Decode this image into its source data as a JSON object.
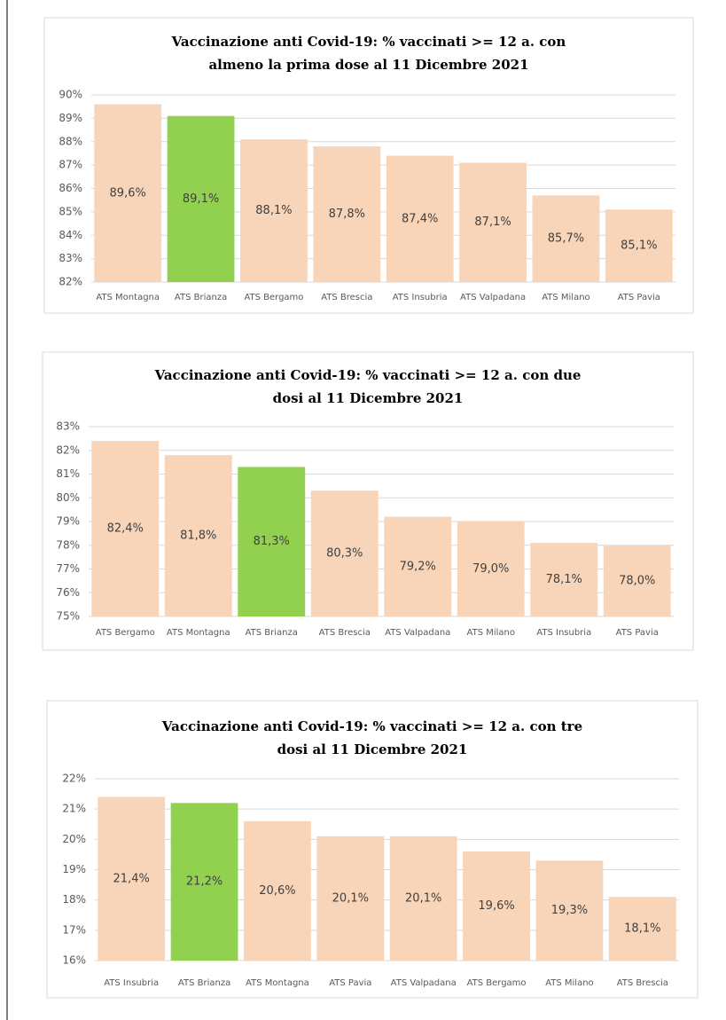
{
  "chart_data": [
    {
      "type": "bar",
      "title": [
        "Vaccinazione anti Covid-19: % vaccinati >= 12 a. con",
        "almeno la prima dose al 11 Dicembre 2021"
      ],
      "categories": [
        "ATS Montagna",
        "ATS Brianza",
        "ATS Bergamo",
        "ATS Brescia",
        "ATS Insubria",
        "ATS Valpadana",
        "ATS Milano",
        "ATS Pavia"
      ],
      "values": [
        89.6,
        89.1,
        88.1,
        87.8,
        87.4,
        87.1,
        85.7,
        85.1
      ],
      "value_labels": [
        "89,6%",
        "89,1%",
        "88,1%",
        "87,8%",
        "87,4%",
        "87,1%",
        "85,7%",
        "85,1%"
      ],
      "colors": [
        "#f8d5b8",
        "#92d050",
        "#f8d5b8",
        "#f8d5b8",
        "#f8d5b8",
        "#f8d5b8",
        "#f8d5b8",
        "#f8d5b8"
      ],
      "ylim": [
        82,
        90
      ],
      "yticks": [
        {
          "value": 82,
          "label": "82%"
        },
        {
          "value": 83,
          "label": "83%"
        },
        {
          "value": 84,
          "label": "84%"
        },
        {
          "value": 85,
          "label": "85%"
        },
        {
          "value": 86,
          "label": "86%"
        },
        {
          "value": 87,
          "label": "87%"
        },
        {
          "value": 88,
          "label": "88%"
        },
        {
          "value": 89,
          "label": "89%"
        },
        {
          "value": 90,
          "label": "90%"
        }
      ],
      "grid": true
    },
    {
      "type": "bar",
      "title": [
        "Vaccinazione anti Covid-19: % vaccinati >= 12 a. con due",
        "dosi al 11 Dicembre 2021"
      ],
      "categories": [
        "ATS Bergamo",
        "ATS Montagna",
        "ATS Brianza",
        "ATS Brescia",
        "ATS Valpadana",
        "ATS Milano",
        "ATS Insubria",
        "ATS Pavia"
      ],
      "values": [
        82.4,
        81.8,
        81.3,
        80.3,
        79.2,
        79.0,
        78.1,
        78.0
      ],
      "value_labels": [
        "82,4%",
        "81,8%",
        "81,3%",
        "80,3%",
        "79,2%",
        "79,0%",
        "78,1%",
        "78,0%"
      ],
      "colors": [
        "#f8d5b8",
        "#f8d5b8",
        "#92d050",
        "#f8d5b8",
        "#f8d5b8",
        "#f8d5b8",
        "#f8d5b8",
        "#f8d5b8"
      ],
      "ylim": [
        75,
        83
      ],
      "yticks": [
        {
          "value": 75,
          "label": "75%"
        },
        {
          "value": 76,
          "label": "76%"
        },
        {
          "value": 77,
          "label": "77%"
        },
        {
          "value": 78,
          "label": "78%"
        },
        {
          "value": 79,
          "label": "79%"
        },
        {
          "value": 80,
          "label": "80%"
        },
        {
          "value": 81,
          "label": "81%"
        },
        {
          "value": 82,
          "label": "82%"
        },
        {
          "value": 83,
          "label": "83%"
        }
      ],
      "grid": true
    },
    {
      "type": "bar",
      "title": [
        "Vaccinazione anti Covid-19: % vaccinati >= 12 a. con tre",
        "dosi al 11 Dicembre 2021"
      ],
      "categories": [
        "ATS Insubria",
        "ATS Brianza",
        "ATS Montagna",
        "ATS Pavia",
        "ATS Valpadana",
        "ATS Bergamo",
        "ATS Milano",
        "ATS Brescia"
      ],
      "values": [
        21.4,
        21.2,
        20.6,
        20.1,
        20.1,
        19.6,
        19.3,
        18.1
      ],
      "value_labels": [
        "21,4%",
        "21,2%",
        "20,6%",
        "20,1%",
        "20,1%",
        "19,6%",
        "19,3%",
        "18,1%"
      ],
      "colors": [
        "#f8d5b8",
        "#92d050",
        "#f8d5b8",
        "#f8d5b8",
        "#f8d5b8",
        "#f8d5b8",
        "#f8d5b8",
        "#f8d5b8"
      ],
      "ylim": [
        16,
        22
      ],
      "yticks": [
        {
          "value": 16,
          "label": "16%"
        },
        {
          "value": 17,
          "label": "17%"
        },
        {
          "value": 18,
          "label": "18%"
        },
        {
          "value": 19,
          "label": "19%"
        },
        {
          "value": 20,
          "label": "20%"
        },
        {
          "value": 21,
          "label": "21%"
        },
        {
          "value": 22,
          "label": "22%"
        }
      ],
      "grid": true
    }
  ]
}
